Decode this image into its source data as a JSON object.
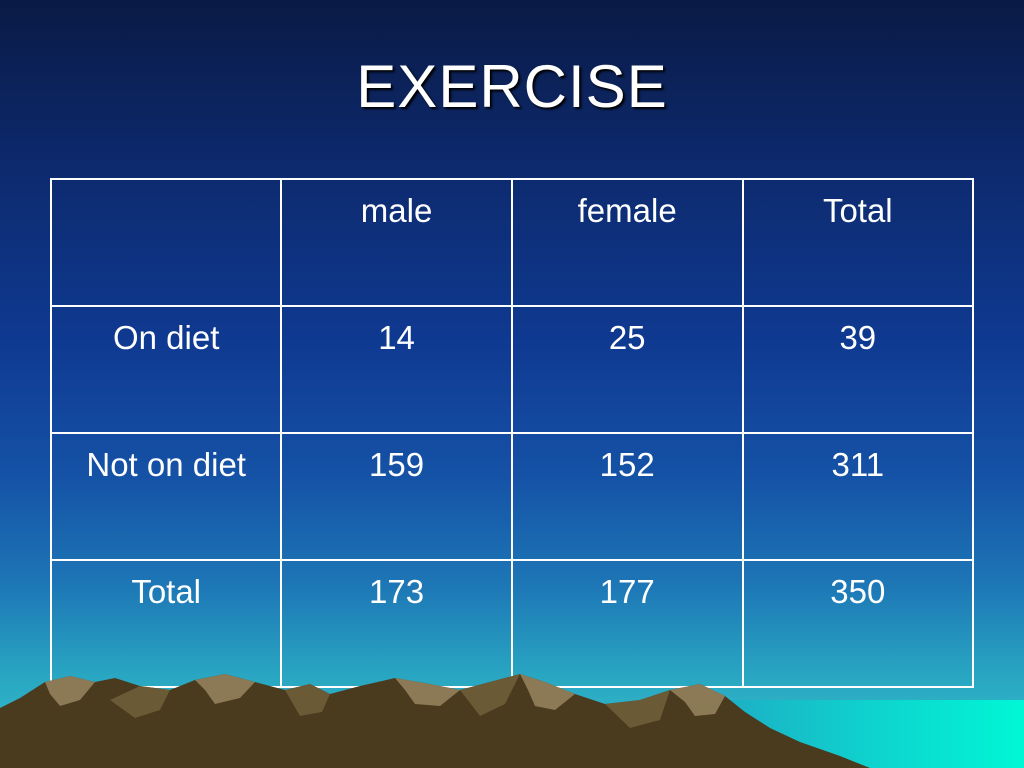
{
  "slide": {
    "title": "EXERCISE"
  },
  "table": {
    "header": [
      "",
      "male",
      "female",
      "Total"
    ],
    "rows": [
      [
        "On diet",
        "14",
        "25",
        "39"
      ],
      [
        "Not on diet",
        "159",
        "152",
        "311"
      ],
      [
        "Total",
        "173",
        "177",
        "350"
      ]
    ]
  },
  "colors": {
    "background_top": "#0a1a45",
    "background_bottom": "#34c4c9",
    "text": "#ffffff",
    "grid_lines": "#ffffff",
    "mountain_dark": "#4a3a1e",
    "mountain_light": "#8c7a56",
    "sea": "#00f0d0"
  },
  "decorations": {
    "mountains": "mountain-range-illustration"
  }
}
